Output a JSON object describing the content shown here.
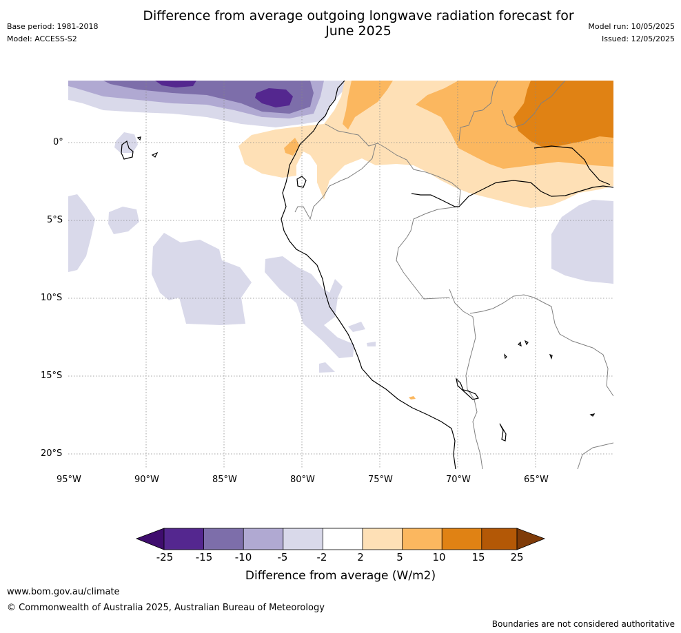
{
  "header": {
    "title_line1": "Difference from average outgoing longwave radiation forecast for",
    "title_line2": "June 2025",
    "base_period": "Base period: 1981-2018",
    "model": "Model: ACCESS-S2",
    "model_run": "Model run: 10/05/2025",
    "issued": "Issued: 12/05/2025"
  },
  "map": {
    "lat_labels": [
      "0°",
      "5°S",
      "10°S",
      "15°S",
      "20°S"
    ],
    "lon_labels": [
      "95°W",
      "90°W",
      "85°W",
      "80°W",
      "75°W",
      "70°W",
      "65°W"
    ],
    "colors": {
      "m25": "#3f0d6e",
      "m20": "#54278f",
      "m12": "#7d6eaa",
      "m7": "#b0a9d2",
      "m3": "#d9d9ea",
      "zero": "#ffffff",
      "p3": "#fee0b6",
      "p7": "#fbb75f",
      "p12": "#e08214",
      "p20": "#b35806",
      "p25": "#7f3b08",
      "coast": "#000000",
      "border": "#808080",
      "grid": "#888888"
    }
  },
  "colorbar": {
    "ticks": [
      "-25",
      "-15",
      "-10",
      "-5",
      "-2",
      "2",
      "5",
      "10",
      "15",
      "25"
    ],
    "label": "Difference from average (W/m2)"
  },
  "footer": {
    "website": "www.bom.gov.au/climate",
    "copyright": "© Commonwealth of Australia 2025, Australian Bureau of Meteorology",
    "disclaimer": "Boundaries are not considered authoritative"
  }
}
